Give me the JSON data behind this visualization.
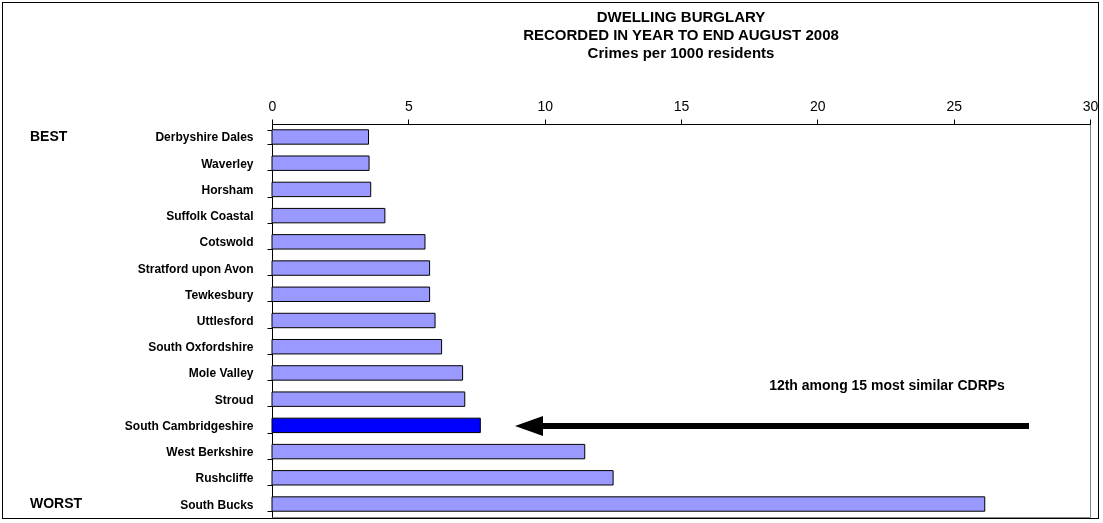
{
  "chart_data": {
    "type": "bar",
    "orientation": "horizontal",
    "title": [
      "DWELLING BURGLARY",
      "RECORDED IN YEAR TO END AUGUST 2008",
      "Crimes per 1000 residents"
    ],
    "categories": [
      "Derbyshire Dales",
      "Waverley",
      "Horsham",
      "Suffolk Coastal",
      "Cotswold",
      "Stratford upon Avon",
      "Tewkesbury",
      "Uttlesford",
      "South Oxfordshire",
      "Mole Valley",
      "Stroud",
      "South Cambridgeshire",
      "West Berkshire",
      "Rushcliffe",
      "South Bucks"
    ],
    "values": [
      3.54,
      3.56,
      3.62,
      4.14,
      5.61,
      5.78,
      5.78,
      5.98,
      6.22,
      6.99,
      7.07,
      7.64,
      11.47,
      12.51,
      26.14
    ],
    "colors": [
      "#9999ff",
      "#9999ff",
      "#9999ff",
      "#9999ff",
      "#9999ff",
      "#9999ff",
      "#9999ff",
      "#9999ff",
      "#9999ff",
      "#9999ff",
      "#9999ff",
      "#0000ff",
      "#9999ff",
      "#9999ff",
      "#9999ff"
    ],
    "xlim": [
      0,
      30
    ],
    "xticks": [
      0,
      5,
      10,
      15,
      20,
      25,
      30
    ],
    "grid": false,
    "annotations": [
      "BEST",
      "WORST",
      "12th among 15 most similar CDRPs"
    ]
  }
}
